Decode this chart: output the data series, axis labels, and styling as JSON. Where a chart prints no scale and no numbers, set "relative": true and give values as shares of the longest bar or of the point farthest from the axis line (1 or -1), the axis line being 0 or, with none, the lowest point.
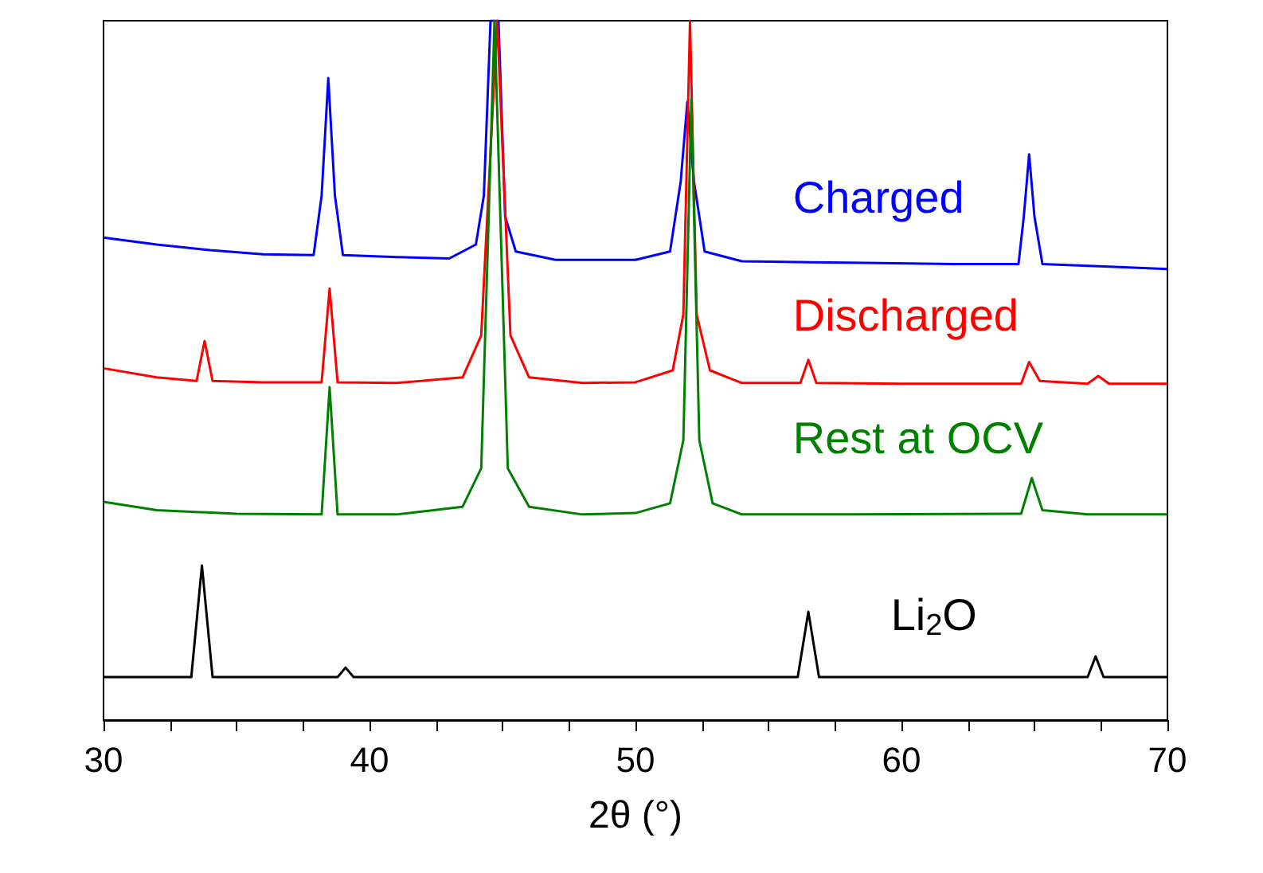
{
  "chart_data": {
    "type": "line",
    "relative": true,
    "xlabel": "2θ (°)",
    "xlim": [
      30,
      70
    ],
    "xticks": [
      30,
      {
        "value": 32.5,
        "label": null
      },
      {
        "value": 35,
        "label": null
      },
      {
        "value": 37.5,
        "label": null
      },
      40,
      {
        "value": 42.5,
        "label": null
      },
      {
        "value": 45,
        "label": null
      },
      {
        "value": 47.5,
        "label": null
      },
      50,
      {
        "value": 52.5,
        "label": null
      },
      {
        "value": 55,
        "label": null
      },
      {
        "value": 57.5,
        "label": null
      },
      60,
      {
        "value": 62.5,
        "label": null
      },
      {
        "value": 65,
        "label": null
      },
      {
        "value": 67.5,
        "label": null
      },
      70
    ],
    "grid": false,
    "legend": false,
    "marker": "none",
    "line_style": "solid",
    "tick_labels": "x",
    "series": [
      {
        "name": "Charged",
        "color": "#0000ff",
        "x": [
          30,
          32,
          34,
          36,
          37.9,
          38.2,
          38.45,
          38.7,
          39,
          41,
          43,
          44,
          44.3,
          44.55,
          44.85,
          45.1,
          45.5,
          47,
          50,
          51.3,
          51.7,
          51.95,
          52.2,
          52.6,
          54,
          58,
          62,
          64.4,
          64.6,
          64.8,
          65,
          65.3,
          68,
          70
        ],
        "values": [
          0.69,
          0.68,
          0.672,
          0.666,
          0.665,
          0.75,
          0.918,
          0.75,
          0.665,
          0.662,
          0.66,
          0.68,
          0.75,
          1,
          1,
          0.72,
          0.67,
          0.658,
          0.658,
          0.67,
          0.77,
          0.884,
          0.77,
          0.67,
          0.656,
          0.654,
          0.652,
          0.652,
          0.72,
          0.809,
          0.72,
          0.652,
          0.648,
          0.645
        ]
      },
      {
        "name": "Discharged",
        "color": "#ff0000",
        "x": [
          30,
          32,
          33.5,
          33.8,
          34.1,
          36,
          38.2,
          38.5,
          38.8,
          41,
          43.5,
          44.2,
          44.8,
          45.3,
          46,
          48,
          50,
          51.4,
          51.8,
          52.05,
          52.3,
          52.8,
          54,
          56.2,
          56.5,
          56.8,
          60,
          64.5,
          64.8,
          65.2,
          67,
          67.4,
          67.8,
          70
        ],
        "values": [
          0.503,
          0.49,
          0.485,
          0.542,
          0.485,
          0.483,
          0.483,
          0.617,
          0.483,
          0.482,
          0.49,
          0.55,
          1,
          0.55,
          0.49,
          0.482,
          0.483,
          0.5,
          0.58,
          1,
          0.58,
          0.5,
          0.482,
          0.482,
          0.515,
          0.482,
          0.481,
          0.481,
          0.512,
          0.485,
          0.481,
          0.492,
          0.481,
          0.481
        ]
      },
      {
        "name": "Rest at OCV",
        "color": "#008000",
        "x": [
          30,
          32,
          35,
          38.2,
          38.5,
          38.8,
          41,
          43.5,
          44.2,
          44.7,
          45.2,
          46,
          48,
          50,
          51.3,
          51.8,
          52.1,
          52.4,
          52.9,
          54,
          58,
          64.5,
          64.9,
          65.3,
          67,
          70
        ],
        "values": [
          0.312,
          0.3,
          0.295,
          0.294,
          0.476,
          0.294,
          0.294,
          0.305,
          0.36,
          1,
          0.36,
          0.305,
          0.294,
          0.296,
          0.31,
          0.4,
          0.888,
          0.4,
          0.31,
          0.294,
          0.294,
          0.295,
          0.346,
          0.3,
          0.294,
          0.294
        ]
      },
      {
        "name": "Li$_{2}$O",
        "color": "#000000",
        "x": [
          30,
          33.3,
          33.7,
          34.1,
          38.8,
          39.1,
          39.4,
          56.1,
          56.5,
          56.9,
          67,
          67.3,
          67.6,
          70
        ],
        "values": [
          0.0615,
          0.0615,
          0.221,
          0.0615,
          0.0615,
          0.075,
          0.0615,
          0.0615,
          0.155,
          0.0615,
          0.0615,
          0.091,
          0.0615,
          0.0615
        ]
      }
    ]
  }
}
